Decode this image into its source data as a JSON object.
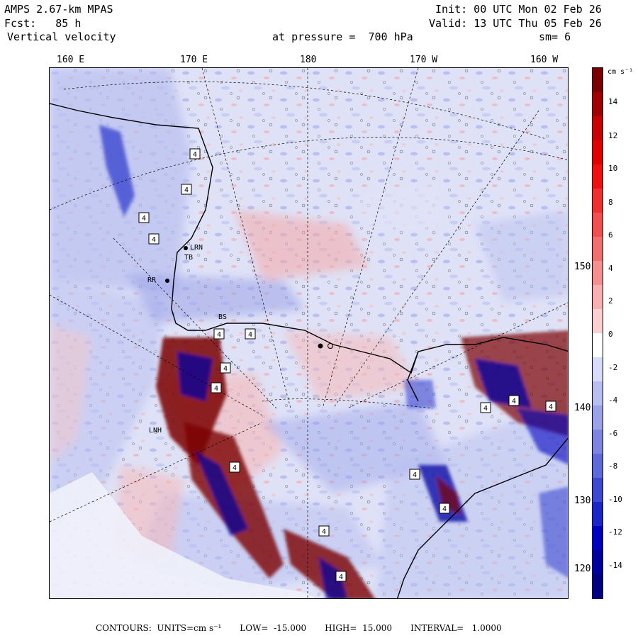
{
  "header": {
    "model": "AMPS 2.67-km MPAS",
    "forecast": "Fcst:   85 h",
    "field": "Vertical velocity",
    "init": "Init: 00 UTC Mon 02 Feb 26",
    "valid": "Valid: 13 UTC Thu 05 Feb 26",
    "pressure": "at pressure =  700 hPa",
    "smooth": "sm= 6"
  },
  "lon_labels": [
    "160 E",
    "170 E",
    "180",
    "170 W",
    "160 W"
  ],
  "lat_labels": [
    "150 W",
    "140 W",
    "130 W",
    "120 W"
  ],
  "colorbar": {
    "unit": "cm s⁻¹",
    "ticks": [
      "14",
      "12",
      "10",
      "8",
      "6",
      "4",
      "2",
      "0",
      "-2",
      "-4",
      "-6",
      "-8",
      "-10",
      "-12",
      "-14"
    ],
    "colors": [
      "#7a0000",
      "#a00000",
      "#c80000",
      "#e00000",
      "#f01010",
      "#f03030",
      "#f05050",
      "#f07070",
      "#f49090",
      "#f8b0b0",
      "#fbd0d0",
      "#ffffff",
      "#d8dcf8",
      "#b8bff0",
      "#9aa2e8",
      "#7c86e0",
      "#5e6ad8",
      "#3c48d0",
      "#1a26c8",
      "#0000c0",
      "#0000a0",
      "#000080"
    ]
  },
  "stations": [
    "4",
    "4",
    "4",
    "4",
    "4",
    "4",
    "4",
    "4",
    "4",
    "4",
    "4",
    "4",
    "4",
    "4",
    "4",
    "4"
  ],
  "place_labels": [
    "LRN",
    "TB",
    "RR",
    "BS",
    "LNH"
  ],
  "footer": {
    "contours": "CONTOURS:  UNITS=cm s⁻¹",
    "low": "LOW=  -15.000",
    "high": "HIGH=  15.000",
    "interval": "INTERVAL=   1.0000"
  }
}
